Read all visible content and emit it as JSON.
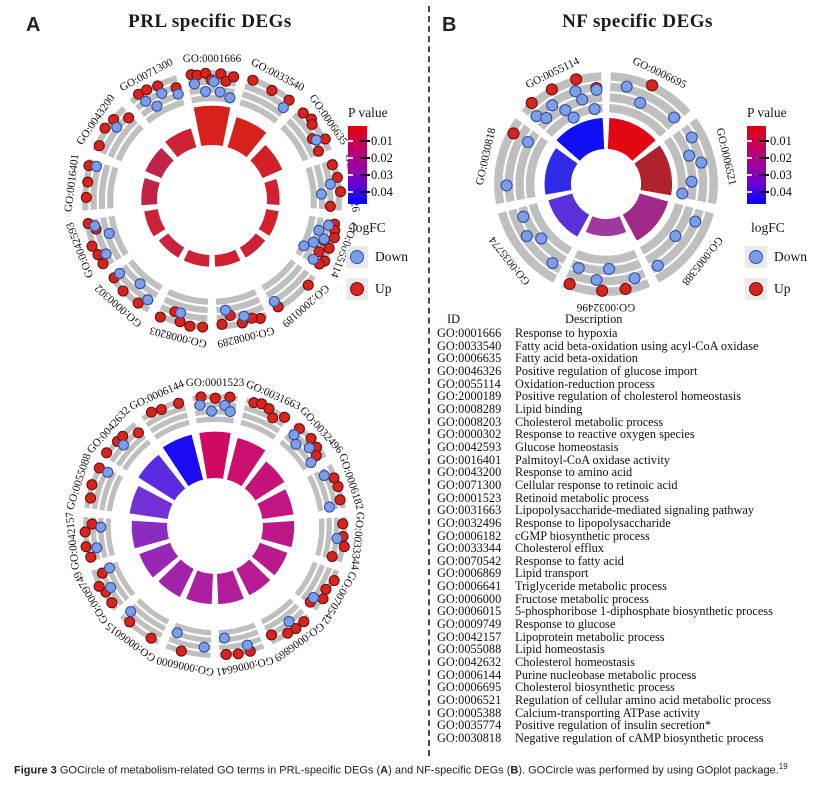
{
  "panel_a": {
    "label": "A",
    "title": "PRL specific DEGs"
  },
  "panel_b": {
    "label": "B",
    "title": "NF specific DEGs"
  },
  "legend": {
    "p_title": "P value",
    "p_ticks": [
      "0.01",
      "0.02",
      "0.03",
      "0.04"
    ],
    "logfc_title": "logFC",
    "down_label": "Down",
    "up_label": "Up",
    "down_color": "#7D9DE8",
    "down_stroke": "#31519E",
    "up_color": "#D7241E",
    "up_stroke": "#6E100E",
    "track_color": "#BFBFBF"
  },
  "chart_data": [
    {
      "type": "gocircle",
      "panel": "A-top",
      "title": "PRL specific DEGs",
      "pvalue_range": [
        0.01,
        0.04
      ],
      "terms": [
        {
          "id": "GO:0001666",
          "color": "#D7211D",
          "bar": 1.0,
          "up": 7,
          "down": 5
        },
        {
          "id": "GO:0033540",
          "color": "#D7211D",
          "bar": 0.8,
          "up": 3,
          "down": 1
        },
        {
          "id": "GO:0006635",
          "color": "#D32027",
          "bar": 0.55,
          "up": 6,
          "down": 1
        },
        {
          "id": "GO:0046326",
          "color": "#CF2132",
          "bar": 0.32,
          "up": 4,
          "down": 2
        },
        {
          "id": "GO:0055114",
          "color": "#D22029",
          "bar": 0.32,
          "up": 8,
          "down": 6
        },
        {
          "id": "GO:2000189",
          "color": "#CE2135",
          "bar": 0.3,
          "up": 2,
          "down": 1
        },
        {
          "id": "GO:0008289",
          "color": "#D02030",
          "bar": 0.3,
          "up": 5,
          "down": 2
        },
        {
          "id": "GO:0008203",
          "color": "#CD2137",
          "bar": 0.3,
          "up": 5,
          "down": 1
        },
        {
          "id": "GO:0000302",
          "color": "#C9223E",
          "bar": 0.3,
          "up": 3,
          "down": 3
        },
        {
          "id": "GO:0042593",
          "color": "#CB223A",
          "bar": 0.35,
          "up": 5,
          "down": 3
        },
        {
          "id": "GO:0016401",
          "color": "#C12347",
          "bar": 0.4,
          "up": 3,
          "down": 1
        },
        {
          "id": "GO:0043200",
          "color": "#BF2349",
          "bar": 0.45,
          "up": 4,
          "down": 1
        },
        {
          "id": "GO:0071300",
          "color": "#CD2136",
          "bar": 0.5,
          "up": 4,
          "down": 4
        }
      ]
    },
    {
      "type": "gocircle",
      "panel": "A-bottom",
      "title": "PRL specific DEGs",
      "pvalue_range": [
        0.01,
        0.04
      ],
      "terms": [
        {
          "id": "GO:0001523",
          "color": "#D00A60",
          "bar": 0.92,
          "up": 3,
          "down": 4
        },
        {
          "id": "GO:0031663",
          "color": "#CB0F6F",
          "bar": 0.85,
          "up": 5,
          "down": 0
        },
        {
          "id": "GO:0032496",
          "color": "#C51378",
          "bar": 0.68,
          "up": 4,
          "down": 4
        },
        {
          "id": "GO:0006182",
          "color": "#C11581",
          "bar": 0.62,
          "up": 3,
          "down": 2
        },
        {
          "id": "GO:0033344",
          "color": "#BD1787",
          "bar": 0.62,
          "up": 4,
          "down": 1
        },
        {
          "id": "GO:0070542",
          "color": "#B9198D",
          "bar": 0.58,
          "up": 4,
          "down": 1
        },
        {
          "id": "GO:0006869",
          "color": "#B51B93",
          "bar": 0.58,
          "up": 4,
          "down": 1
        },
        {
          "id": "GO:0006641",
          "color": "#B11D98",
          "bar": 0.6,
          "up": 3,
          "down": 2
        },
        {
          "id": "GO:0006000",
          "color": "#AB1FA0",
          "bar": 0.6,
          "up": 1,
          "down": 2
        },
        {
          "id": "GO:0006015",
          "color": "#A222AA",
          "bar": 0.62,
          "up": 2,
          "down": 1
        },
        {
          "id": "GO:0009749",
          "color": "#9727B4",
          "bar": 0.65,
          "up": 4,
          "down": 2
        },
        {
          "id": "GO:0042157",
          "color": "#8A2CC0",
          "bar": 0.7,
          "up": 4,
          "down": 2
        },
        {
          "id": "GO:0055088",
          "color": "#7330D2",
          "bar": 0.76,
          "up": 3,
          "down": 1
        },
        {
          "id": "GO:0042632",
          "color": "#5A2BE0",
          "bar": 0.85,
          "up": 4,
          "down": 1
        },
        {
          "id": "GO:0006144",
          "color": "#1B0BF2",
          "bar": 0.92,
          "up": 3,
          "down": 0
        }
      ]
    },
    {
      "type": "gocircle",
      "panel": "B",
      "title": "NF specific DEGs",
      "pvalue_range": [
        0.01,
        0.04
      ],
      "terms": [
        {
          "id": "GO:0006695",
          "color": "#E20713",
          "bar": 1.0,
          "up": 1,
          "down": 3
        },
        {
          "id": "GO:0006521",
          "color": "#B0222E",
          "bar": 1.0,
          "up": 0,
          "down": 5
        },
        {
          "id": "GO:0005388",
          "color": "#A02887",
          "bar": 0.95,
          "up": 0,
          "down": 3
        },
        {
          "id": "GO:0032496",
          "color": "#9D3A9D",
          "bar": 0.55,
          "up": 3,
          "down": 4
        },
        {
          "id": "GO:0035774",
          "color": "#5A31D8",
          "bar": 0.8,
          "up": 0,
          "down": 4
        },
        {
          "id": "GO:0030818",
          "color": "#2F2BE8",
          "bar": 0.85,
          "up": 1,
          "down": 2
        },
        {
          "id": "GO:0055114",
          "color": "#0F0FF6",
          "bar": 1.0,
          "up": 4,
          "down": 9
        }
      ]
    }
  ],
  "go_table": {
    "id_header": "ID",
    "desc_header": "Description",
    "rows": [
      {
        "id": "GO:0001666",
        "desc": "Response to hypoxia"
      },
      {
        "id": "GO:0033540",
        "desc": "Fatty acid beta-oxidation using acyl-CoA oxidase"
      },
      {
        "id": "GO:0006635",
        "desc": "Fatty acid beta-oxidation"
      },
      {
        "id": "GO:0046326",
        "desc": "Positive regulation of glucose import"
      },
      {
        "id": "GO:0055114",
        "desc": "Oxidation-reduction process"
      },
      {
        "id": "GO:2000189",
        "desc": "Positive regulation of cholesterol homeostasis"
      },
      {
        "id": "GO:0008289",
        "desc": "Lipid binding"
      },
      {
        "id": "GO:0008203",
        "desc": "Cholesterol metabolic process"
      },
      {
        "id": "GO:0000302",
        "desc": "Response to reactive oxygen species"
      },
      {
        "id": "GO:0042593",
        "desc": "Glucose homeostasis"
      },
      {
        "id": "GO:0016401",
        "desc": "Palmitoyl-CoA oxidase activity"
      },
      {
        "id": "GO:0043200",
        "desc": "Response to amino acid"
      },
      {
        "id": "GO:0071300",
        "desc": "Cellular response to retinoic acid"
      },
      {
        "id": "GO:0001523",
        "desc": "Retinoid metabolic process"
      },
      {
        "id": "GO:0031663",
        "desc": "Lipopolysaccharide-mediated signaling pathway"
      },
      {
        "id": "GO:0032496",
        "desc": "Response to lipopolysaccharide"
      },
      {
        "id": "GO:0006182",
        "desc": "cGMP biosynthetic process"
      },
      {
        "id": "GO:0033344",
        "desc": "Cholesterol efflux"
      },
      {
        "id": "GO:0070542",
        "desc": "Response to fatty acid"
      },
      {
        "id": "GO:0006869",
        "desc": "Lipid transport"
      },
      {
        "id": "GO:0006641",
        "desc": "Triglyceride metabolic process"
      },
      {
        "id": "GO:0006000",
        "desc": "Fructose metabolic process"
      },
      {
        "id": "GO:0006015",
        "desc": "5-phosphoribose 1-diphosphate biosynthetic process"
      },
      {
        "id": "GO:0009749",
        "desc": "Response to glucose"
      },
      {
        "id": "GO:0042157",
        "desc": "Lipoprotein metabolic process"
      },
      {
        "id": "GO:0055088",
        "desc": "Lipid homeostasis"
      },
      {
        "id": "GO:0042632",
        "desc": "Cholesterol homeostasis"
      },
      {
        "id": "GO:0006144",
        "desc": "Purine nucleobase metabolic process"
      },
      {
        "id": "GO:0006695",
        "desc": "Cholesterol biosynthetic process"
      },
      {
        "id": "GO:0006521",
        "desc": "Regulation of cellular amino acid metabolic process"
      },
      {
        "id": "GO:0005388",
        "desc": "Calcium-transporting ATPase activity"
      },
      {
        "id": "GO:0035774",
        "desc": "Positive regulation of  insulin secretion*"
      },
      {
        "id": "GO:0030818",
        "desc": "Negative regulation of cAMP biosynthetic process"
      }
    ]
  },
  "caption": {
    "bold_prefix": "Figure 3",
    "part1": " GOCircle of metabolism-related GO terms in PRL-specific DEGs (",
    "bold_a": "A",
    "part2": ") and NF-specific DEGs (",
    "bold_b": "B",
    "part3": "). GOCircle was performed by using GOplot package.",
    "superscript": "19"
  }
}
